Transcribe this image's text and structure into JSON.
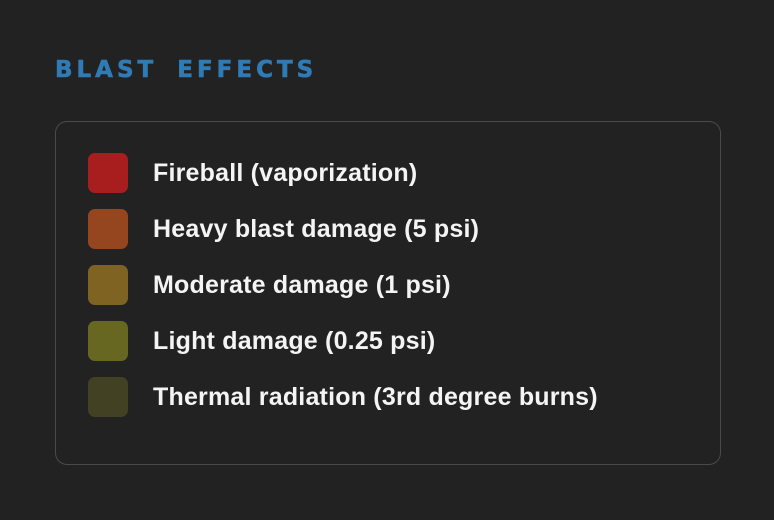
{
  "legend": {
    "title": "BLAST EFFECTS",
    "items": [
      {
        "label": "Fireball (vaporization)",
        "color": "#a81e1e"
      },
      {
        "label": "Heavy blast damage (5 psi)",
        "color": "#96461f"
      },
      {
        "label": "Moderate damage (1 psi)",
        "color": "#7e6323"
      },
      {
        "label": "Light damage (0.25 psi)",
        "color": "#686722"
      },
      {
        "label": "Thermal radiation (3rd degree burns)",
        "color": "#424124"
      }
    ]
  }
}
